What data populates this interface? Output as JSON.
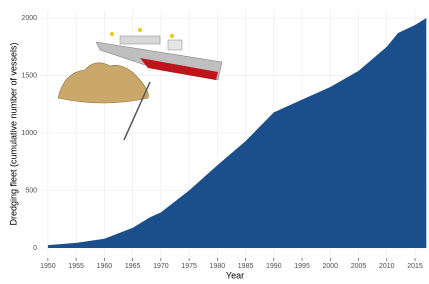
{
  "chart_data": {
    "type": "area",
    "x_label": "Year",
    "y_label": "Dredging fleet (cumulative number of vessels)",
    "x": [
      1950,
      1955,
      1960,
      1965,
      1968,
      1970,
      1975,
      1980,
      1985,
      1990,
      1995,
      2000,
      2005,
      2010,
      2012,
      2015,
      2017
    ],
    "values": [
      25,
      45,
      80,
      175,
      265,
      310,
      500,
      720,
      930,
      1180,
      1290,
      1400,
      1540,
      1750,
      1870,
      1940,
      2000
    ],
    "color": "#1a4f8b",
    "xlim": [
      1948.6,
      2017.3
    ],
    "ylim": [
      -87,
      2070
    ],
    "xticks": [
      1950,
      1955,
      1960,
      1965,
      1970,
      1975,
      1980,
      1985,
      1990,
      1995,
      2000,
      2005,
      2010,
      2015
    ],
    "yticks": [
      0,
      500,
      1000,
      1500,
      2000
    ],
    "grid": true
  }
}
